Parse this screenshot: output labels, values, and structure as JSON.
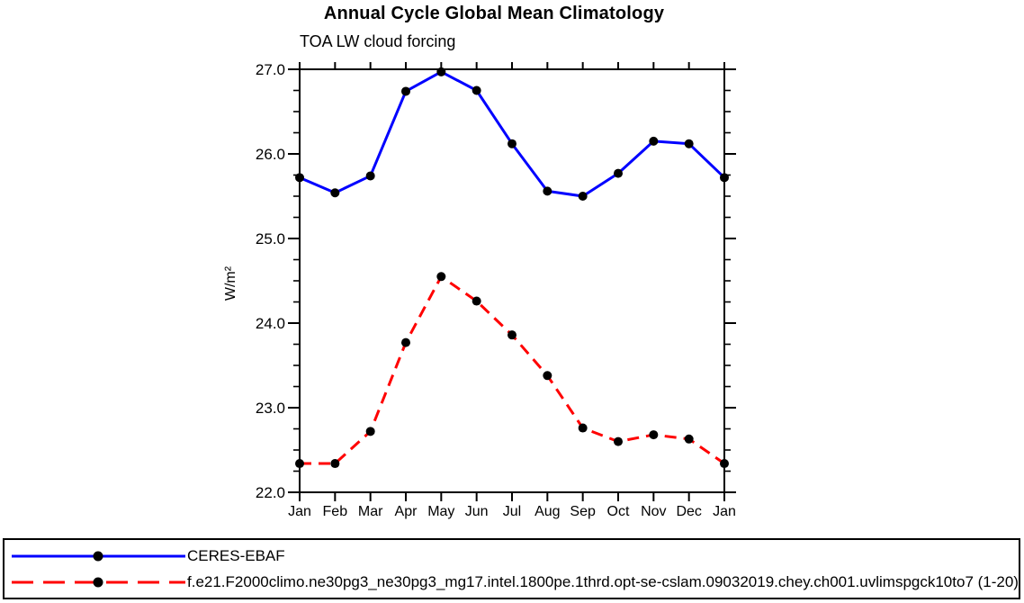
{
  "chart_data": {
    "type": "line",
    "title": "Annual Cycle Global Mean Climatology",
    "subtitle": "TOA LW cloud forcing",
    "ylabel": "W/m²",
    "categories": [
      "Jan",
      "Feb",
      "Mar",
      "Apr",
      "May",
      "Jun",
      "Jul",
      "Aug",
      "Sep",
      "Oct",
      "Nov",
      "Dec",
      "Jan"
    ],
    "ylim": [
      22.0,
      27.0
    ],
    "ytick_labels": [
      "22.0",
      "23.0",
      "24.0",
      "25.0",
      "26.0",
      "27.0"
    ],
    "yticks": [
      22.0,
      23.0,
      24.0,
      25.0,
      26.0,
      27.0
    ],
    "y_minor_step": 0.25,
    "grid": false,
    "legend_position": "bottom-full-width-box",
    "marker": {
      "shape": "filled-circle",
      "color": "#000000"
    },
    "axis_color": "#000000",
    "series": [
      {
        "name": "CERES-EBAF",
        "color": "#0000ff",
        "style": "solid",
        "values": [
          25.72,
          25.54,
          25.74,
          26.74,
          26.97,
          26.75,
          26.12,
          25.56,
          25.5,
          25.77,
          26.15,
          26.12,
          25.72
        ]
      },
      {
        "name": "f.e21.F2000climo.ne30pg3_ne30pg3_mg17.intel.1800pe.1thrd.opt-se-cslam.09032019.chey.ch001.uvlimspgck10to7 (1-20)",
        "color": "#ff0000",
        "style": "dashed",
        "values": [
          22.34,
          22.34,
          22.72,
          23.77,
          24.55,
          24.26,
          23.86,
          23.38,
          22.76,
          22.6,
          22.68,
          22.63,
          22.34
        ]
      }
    ]
  }
}
